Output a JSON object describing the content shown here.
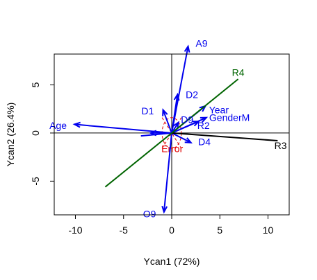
{
  "chart_data": {
    "type": "biplot",
    "xlabel": "Ycan1 (72%)",
    "ylabel": "Ycan2 (26.4%)",
    "xlim": [
      -12.2,
      12.2
    ],
    "ylim": [
      -8.5,
      8.2
    ],
    "xticks": [
      -10,
      -5,
      0,
      5,
      10
    ],
    "yticks": [
      -5,
      0,
      5
    ],
    "reference_lines": {
      "x": 0,
      "y": 0
    },
    "colors": {
      "blue": "#0000ee",
      "green": "#006400",
      "black": "#000000",
      "red": "#e00000"
    },
    "error_ellipse": {
      "label": "Error",
      "color": "#e00000",
      "center": [
        0,
        0
      ],
      "radius_x": 1.0,
      "radius_y": 1.6
    },
    "vectors": [
      {
        "label": "A9",
        "end": [
          1.7,
          9.0
        ],
        "label_pos": [
          3.1,
          9.3
        ],
        "color": "blue",
        "arrow": true
      },
      {
        "label": "D2",
        "end": [
          0.6,
          4.0
        ],
        "label_pos": [
          2.1,
          4.0
        ],
        "color": "blue",
        "arrow": true
      },
      {
        "label": "D1",
        "end": [
          -0.9,
          2.4
        ],
        "label_pos": [
          -2.5,
          2.3
        ],
        "color": "blue",
        "arrow": true
      },
      {
        "label": "D9",
        "end": [
          0.7,
          1.1
        ],
        "label_pos": [
          1.6,
          1.4
        ],
        "color": "blue",
        "arrow": true
      },
      {
        "label": "Year",
        "end": [
          3.5,
          2.8
        ],
        "label_pos": [
          4.9,
          2.4
        ],
        "color": "blue",
        "arrow": true
      },
      {
        "label": "GenderM",
        "end": [
          3.6,
          1.6
        ],
        "label_pos": [
          6.0,
          1.6
        ],
        "color": "blue",
        "arrow": true
      },
      {
        "label": "R2",
        "end": [
          2.8,
          1.2
        ],
        "label_pos": [
          3.3,
          0.8
        ],
        "color": "blue",
        "arrow": true
      },
      {
        "label": "D4",
        "end": [
          2.0,
          -1.0
        ],
        "label_pos": [
          3.4,
          -0.9
        ],
        "color": "blue",
        "arrow": true
      },
      {
        "label": "Age",
        "end": [
          -10.1,
          0.9
        ],
        "label_pos": [
          -11.8,
          0.8
        ],
        "color": "blue",
        "arrow": true
      },
      {
        "label": "",
        "end": [
          -2.2,
          0.0
        ],
        "label_pos": null,
        "color": "blue",
        "arrow": true
      },
      {
        "label": "",
        "end": [
          -3.2,
          -0.3
        ],
        "label_pos": null,
        "color": "blue",
        "arrow": false
      },
      {
        "label": "O9",
        "end": [
          -0.8,
          -8.2
        ],
        "label_pos": [
          -2.3,
          -8.4
        ],
        "color": "blue",
        "arrow": true
      },
      {
        "label": "R3",
        "end": [
          11.0,
          -0.8
        ],
        "label_pos": [
          11.3,
          -1.3
        ],
        "color": "black",
        "arrow": false
      },
      {
        "label": "R4",
        "end": [
          6.9,
          5.6
        ],
        "label_pos": [
          6.9,
          6.3
        ],
        "color": "green",
        "arrow": false,
        "start": [
          -6.9,
          -5.6
        ]
      }
    ]
  }
}
